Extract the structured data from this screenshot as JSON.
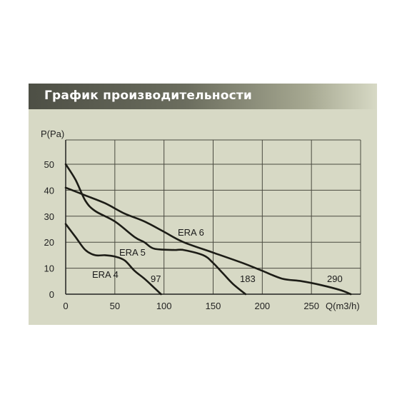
{
  "header": {
    "title": "График  производительности"
  },
  "chart_data": {
    "type": "line",
    "title": "График  производительности",
    "xlabel": "Q(m3/h)",
    "ylabel": "P(Pa)",
    "xlim": [
      0,
      300
    ],
    "ylim": [
      0,
      50
    ],
    "grid": true,
    "x_ticks": [
      0,
      50,
      100,
      150,
      200,
      250
    ],
    "y_ticks": [
      0,
      10,
      20,
      30,
      40,
      50
    ],
    "line_color": "#1c1c16",
    "series": [
      {
        "name": "ERA 4",
        "end_label": "97",
        "points": [
          [
            0,
            27
          ],
          [
            10,
            22
          ],
          [
            20,
            17
          ],
          [
            30,
            15
          ],
          [
            40,
            15
          ],
          [
            50,
            14.5
          ],
          [
            60,
            13
          ],
          [
            70,
            9
          ],
          [
            80,
            6
          ],
          [
            90,
            2.5
          ],
          [
            97,
            0
          ]
        ]
      },
      {
        "name": "ERA 5",
        "end_label": "183",
        "points": [
          [
            0,
            50
          ],
          [
            10,
            44
          ],
          [
            20,
            36
          ],
          [
            30,
            32
          ],
          [
            50,
            28
          ],
          [
            70,
            22
          ],
          [
            80,
            20
          ],
          [
            90,
            17.5
          ],
          [
            110,
            17
          ],
          [
            120,
            17
          ],
          [
            140,
            15
          ],
          [
            150,
            12
          ],
          [
            160,
            8
          ],
          [
            170,
            4
          ],
          [
            183,
            0
          ]
        ]
      },
      {
        "name": "ERA 6",
        "end_label": "290",
        "points": [
          [
            0,
            41
          ],
          [
            20,
            38
          ],
          [
            40,
            35
          ],
          [
            60,
            31
          ],
          [
            80,
            28
          ],
          [
            100,
            24
          ],
          [
            120,
            20
          ],
          [
            150,
            16
          ],
          [
            180,
            12
          ],
          [
            200,
            9
          ],
          [
            220,
            6
          ],
          [
            240,
            5
          ],
          [
            260,
            3.5
          ],
          [
            280,
            1.5
          ],
          [
            290,
            0
          ]
        ]
      }
    ]
  }
}
